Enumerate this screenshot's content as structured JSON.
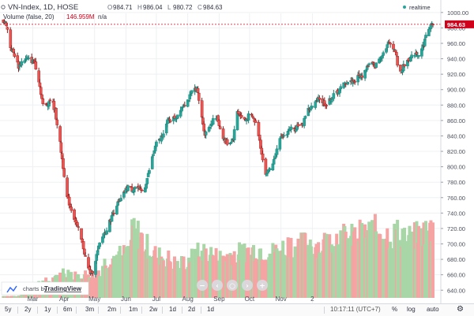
{
  "header": {
    "symbol": "VN-Index, 1D, HOSE",
    "ohlc": [
      {
        "label": "O",
        "value": "984.71"
      },
      {
        "label": "H",
        "value": "986.04"
      },
      {
        "label": "L",
        "value": "980.72"
      },
      {
        "label": "C",
        "value": "984.63"
      }
    ],
    "realtime_label": "realtime",
    "volume_label": "Volume (false, 20)",
    "volume_value": "146.959M",
    "volume_extra": "n/a"
  },
  "price_axis": {
    "ticks": [
      "1000.00",
      "980.00",
      "960.00",
      "940.00",
      "920.00",
      "900.00",
      "880.00",
      "860.00",
      "840.00",
      "820.00",
      "800.00",
      "780.00",
      "760.00",
      "740.00",
      "720.00",
      "700.00",
      "680.00",
      "660.00",
      "640.00"
    ],
    "last_price": "984.63"
  },
  "time_axis": {
    "months": [
      "Mar",
      "Apr",
      "May",
      "Jun",
      "Jul",
      "Aug",
      "Sep",
      "Oct",
      "Nov",
      "2"
    ]
  },
  "branding": {
    "prefix": "charts by",
    "name": "TradingView"
  },
  "toolbar": {
    "timeframes": [
      "5y",
      "2y",
      "1y",
      "6m",
      "3m",
      "2m",
      "1m",
      "2w",
      "1d",
      "2d",
      "1d"
    ],
    "time": "10:17:11 (UTC+7)",
    "percent": "%",
    "log": "log",
    "auto": "auto"
  },
  "nav": {
    "zoom_out": "−",
    "scroll_left": "‹",
    "reset": "○",
    "scroll_right": "›",
    "zoom_in": "+"
  },
  "colors": {
    "up": "#26a69a",
    "down": "#ef5350",
    "vol_up": "#a8d6a6",
    "vol_down": "#f5a3a3",
    "price_line": "#d0021b",
    "accent": "#2962ff"
  },
  "chart_data": {
    "type": "candlestick",
    "price_range": [
      628,
      1008
    ],
    "volume_max_m": 200,
    "months": [
      {
        "label": "Mar",
        "day": 57
      },
      {
        "label": "Apr",
        "day": 88
      },
      {
        "label": "May",
        "day": 118
      },
      {
        "label": "Jun",
        "day": 149
      },
      {
        "label": "Jul",
        "day": 179
      },
      {
        "label": "Aug",
        "day": 210
      },
      {
        "label": "Sep",
        "day": 241
      },
      {
        "label": "Oct",
        "day": 271
      },
      {
        "label": "Nov",
        "day": 302
      },
      {
        "label": "2",
        "day": 333
      }
    ],
    "first_day": 27,
    "close_path": [
      [
        27,
        990
      ],
      [
        31,
        985
      ],
      [
        35,
        955
      ],
      [
        39,
        945
      ],
      [
        43,
        930
      ],
      [
        47,
        938
      ],
      [
        51,
        940
      ],
      [
        55,
        938
      ],
      [
        59,
        935
      ],
      [
        63,
        912
      ],
      [
        67,
        880
      ],
      [
        71,
        880
      ],
      [
        75,
        890
      ],
      [
        79,
        872
      ],
      [
        83,
        840
      ],
      [
        87,
        800
      ],
      [
        91,
        760
      ],
      [
        95,
        745
      ],
      [
        99,
        730
      ],
      [
        103,
        715
      ],
      [
        107,
        695
      ],
      [
        111,
        670
      ],
      [
        115,
        660
      ],
      [
        119,
        680
      ],
      [
        123,
        700
      ],
      [
        127,
        712
      ],
      [
        131,
        722
      ],
      [
        135,
        735
      ],
      [
        139,
        750
      ],
      [
        143,
        755
      ],
      [
        147,
        765
      ],
      [
        151,
        775
      ],
      [
        155,
        770
      ],
      [
        159,
        775
      ],
      [
        163,
        768
      ],
      [
        167,
        770
      ],
      [
        171,
        790
      ],
      [
        175,
        812
      ],
      [
        179,
        830
      ],
      [
        183,
        836
      ],
      [
        187,
        848
      ],
      [
        191,
        862
      ],
      [
        195,
        862
      ],
      [
        199,
        865
      ],
      [
        203,
        876
      ],
      [
        207,
        882
      ],
      [
        211,
        888
      ],
      [
        215,
        900
      ],
      [
        219,
        902
      ],
      [
        223,
        870
      ],
      [
        227,
        842
      ],
      [
        231,
        852
      ],
      [
        235,
        860
      ],
      [
        239,
        864
      ],
      [
        243,
        845
      ],
      [
        247,
        832
      ],
      [
        251,
        830
      ],
      [
        255,
        838
      ],
      [
        259,
        872
      ],
      [
        263,
        864
      ],
      [
        267,
        860
      ],
      [
        271,
        868
      ],
      [
        275,
        862
      ],
      [
        279,
        850
      ],
      [
        283,
        818
      ],
      [
        287,
        790
      ],
      [
        291,
        798
      ],
      [
        295,
        808
      ],
      [
        299,
        832
      ],
      [
        303,
        838
      ],
      [
        307,
        842
      ],
      [
        311,
        850
      ],
      [
        315,
        848
      ],
      [
        319,
        855
      ],
      [
        323,
        852
      ],
      [
        327,
        872
      ],
      [
        331,
        876
      ],
      [
        335,
        880
      ],
      [
        339,
        890
      ],
      [
        343,
        884
      ],
      [
        347,
        880
      ],
      [
        351,
        888
      ],
      [
        355,
        894
      ],
      [
        359,
        898
      ],
      [
        363,
        906
      ],
      [
        367,
        910
      ],
      [
        371,
        910
      ],
      [
        375,
        912
      ],
      [
        379,
        918
      ],
      [
        383,
        918
      ],
      [
        387,
        930
      ],
      [
        391,
        935
      ],
      [
        395,
        930
      ],
      [
        399,
        940
      ],
      [
        403,
        948
      ],
      [
        407,
        958
      ],
      [
        411,
        960
      ],
      [
        415,
        950
      ],
      [
        419,
        918
      ],
      [
        423,
        930
      ],
      [
        427,
        938
      ],
      [
        431,
        942
      ],
      [
        435,
        948
      ],
      [
        439,
        945
      ],
      [
        443,
        960
      ],
      [
        447,
        978
      ],
      [
        451,
        985
      ]
    ],
    "volume_path": [
      [
        27,
        4
      ],
      [
        45,
        4
      ],
      [
        50,
        20
      ],
      [
        60,
        30
      ],
      [
        70,
        35
      ],
      [
        80,
        40
      ],
      [
        85,
        55
      ],
      [
        90,
        60
      ],
      [
        100,
        45
      ],
      [
        110,
        50
      ],
      [
        118,
        48
      ],
      [
        130,
        80
      ],
      [
        140,
        90
      ],
      [
        150,
        95
      ],
      [
        157,
        150
      ],
      [
        160,
        140
      ],
      [
        170,
        110
      ],
      [
        180,
        90
      ],
      [
        190,
        85
      ],
      [
        200,
        70
      ],
      [
        210,
        80
      ],
      [
        220,
        95
      ],
      [
        230,
        100
      ],
      [
        240,
        85
      ],
      [
        250,
        90
      ],
      [
        260,
        95
      ],
      [
        270,
        100
      ],
      [
        280,
        105
      ],
      [
        290,
        95
      ],
      [
        300,
        100
      ],
      [
        310,
        115
      ],
      [
        320,
        110
      ],
      [
        330,
        120
      ],
      [
        340,
        110
      ],
      [
        350,
        125
      ],
      [
        360,
        130
      ],
      [
        370,
        125
      ],
      [
        380,
        135
      ],
      [
        390,
        140
      ],
      [
        400,
        145
      ],
      [
        410,
        130
      ],
      [
        420,
        140
      ],
      [
        430,
        125
      ],
      [
        440,
        135
      ],
      [
        450,
        147
      ]
    ],
    "last": {
      "open": 984.71,
      "high": 986.04,
      "low": 980.72,
      "close": 984.63
    }
  }
}
